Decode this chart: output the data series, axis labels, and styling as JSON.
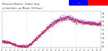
{
  "title": "Milwaukee Weather  Outdoor Temp",
  "title2": "vs Heat Index  per Minute  (24 Hours)",
  "title_fontsize": 2.2,
  "bg_color": "#ffffff",
  "plot_bg_color": "#ffffff",
  "dot_color_temp": "#ff0000",
  "dot_color_heat": "#0000ff",
  "legend_color_temp": "#ff0000",
  "legend_color_heat": "#0000ff",
  "ylim": [
    48,
    92
  ],
  "xlim": [
    0,
    1440
  ],
  "grid_color": "#bbbbbb",
  "dot_size": 0.4,
  "yticks": [
    50,
    55,
    60,
    65,
    70,
    75,
    80,
    85,
    90
  ],
  "ytick_labels": [
    "50",
    "55",
    "60",
    "65",
    "70",
    "75",
    "80",
    "85",
    "90"
  ]
}
